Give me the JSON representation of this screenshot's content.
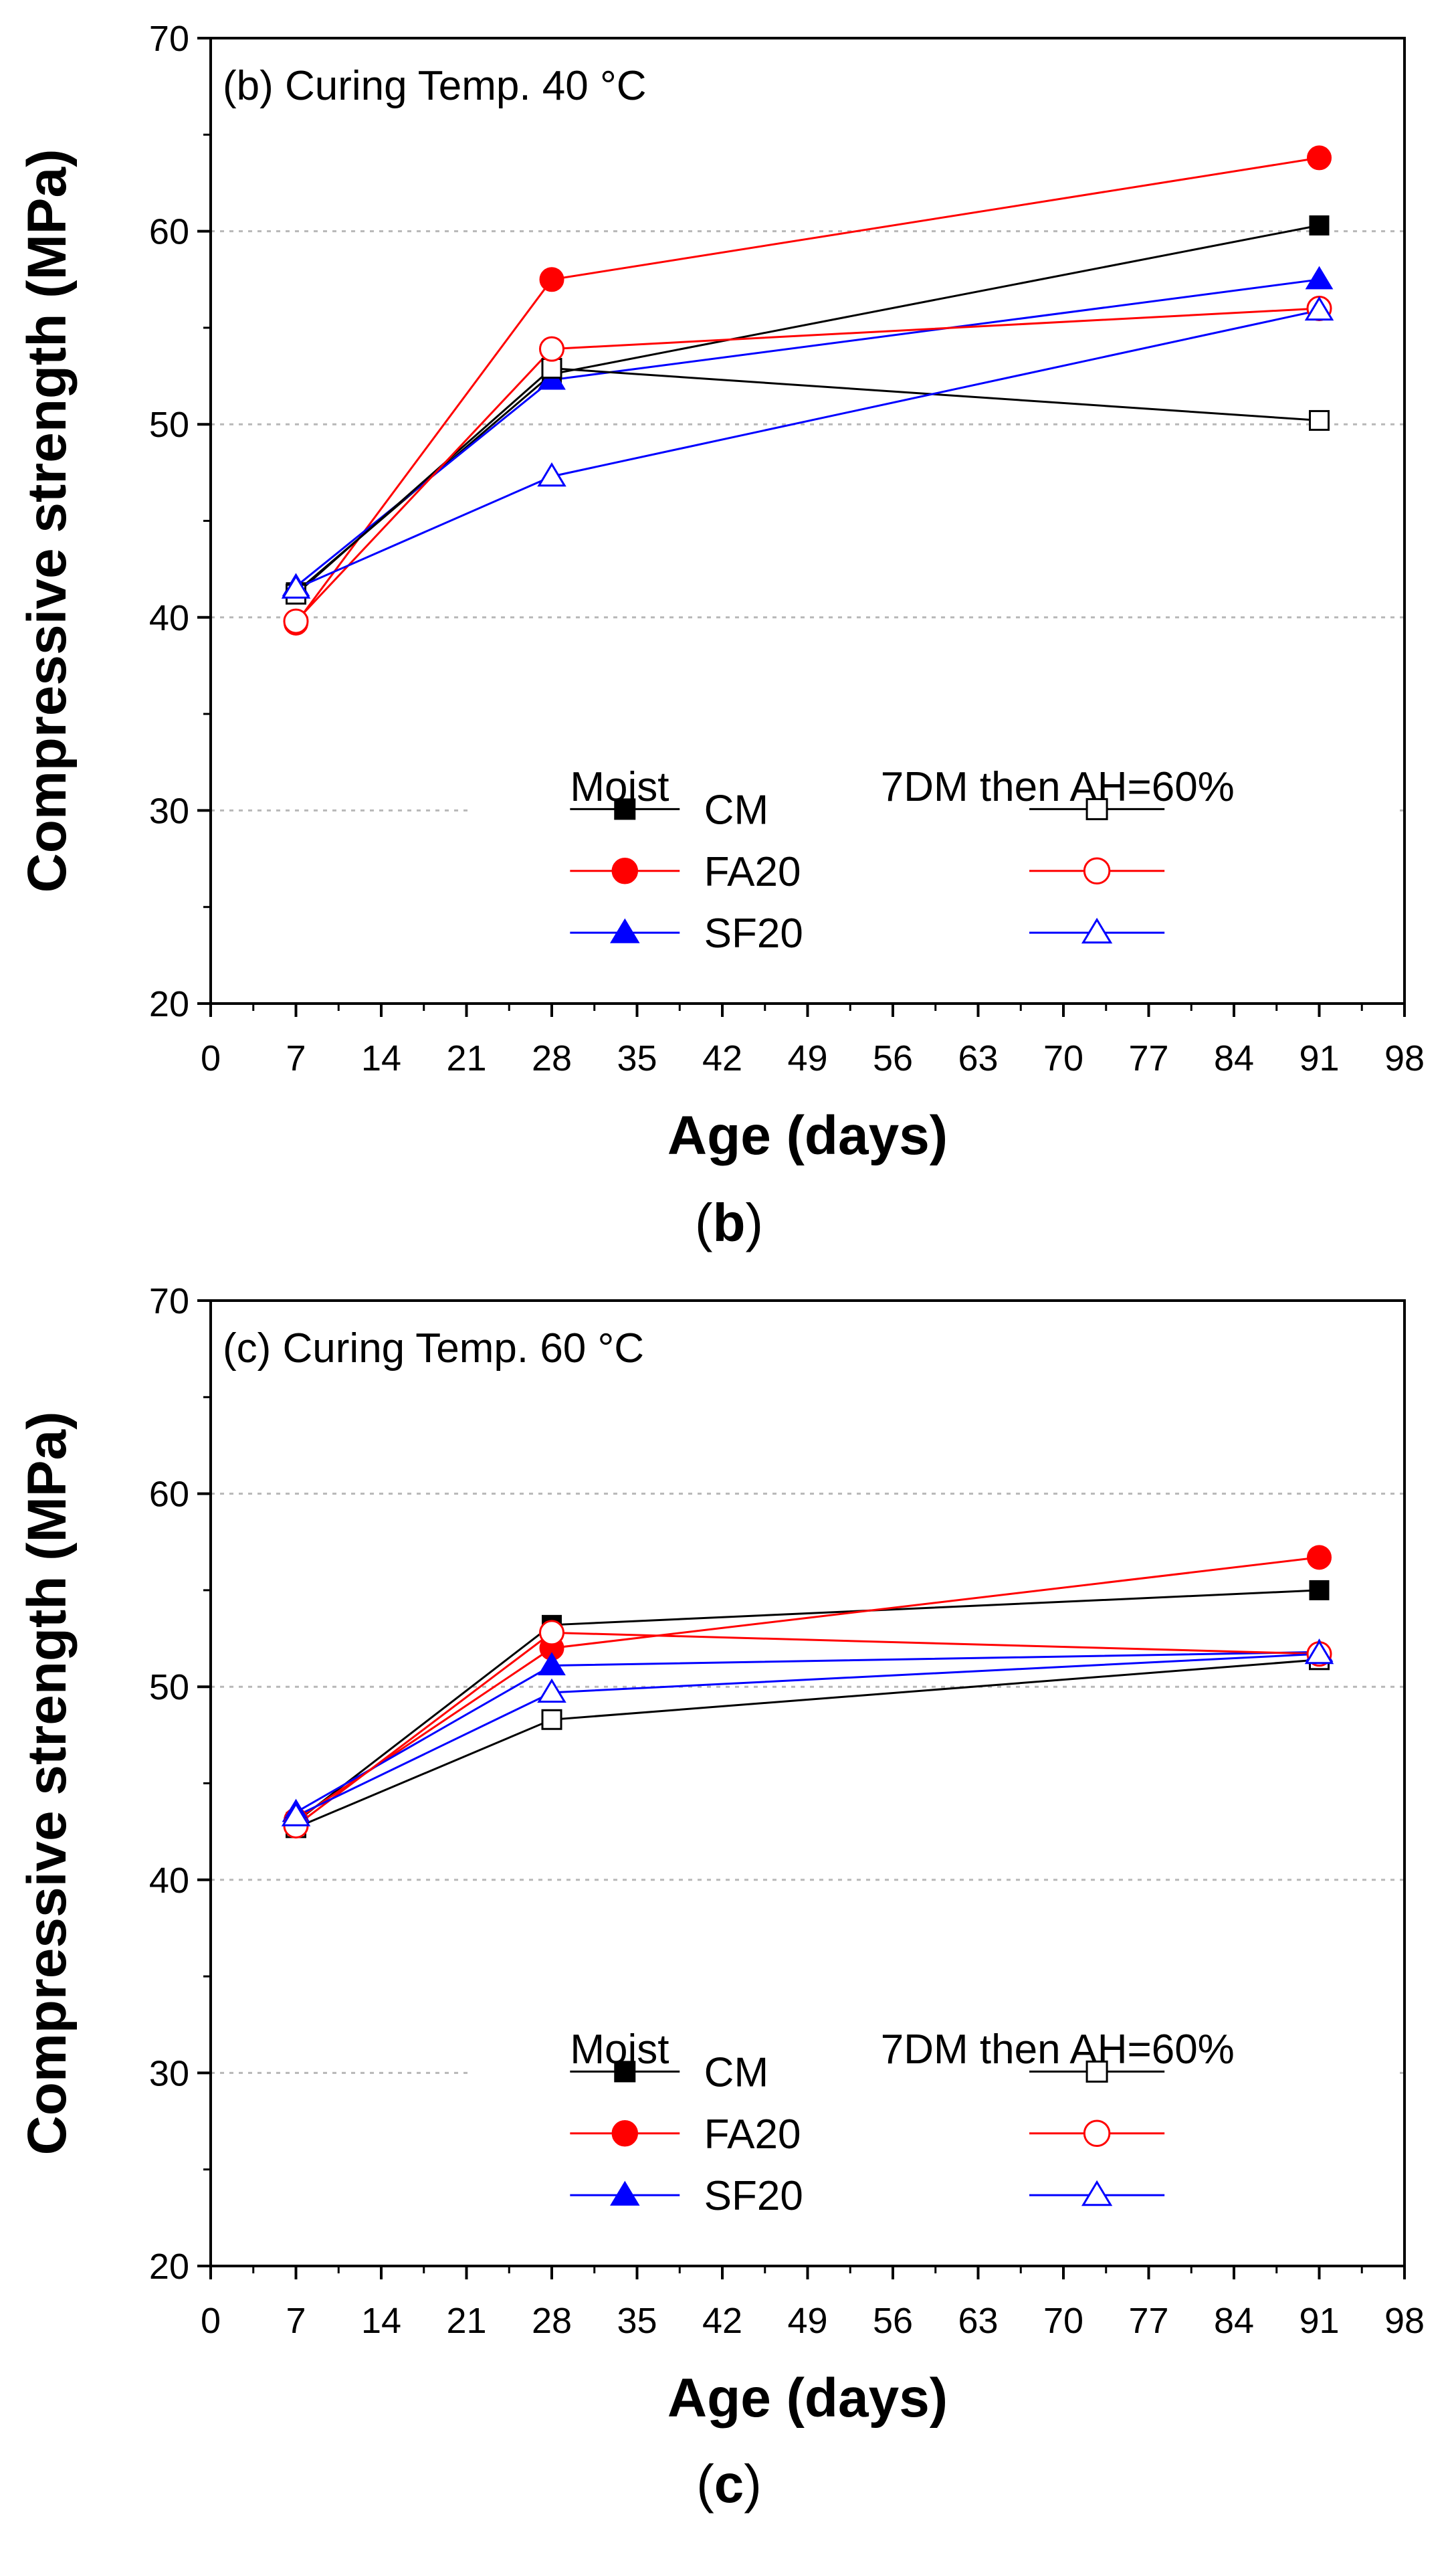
{
  "chart_data": [
    {
      "type": "line",
      "panel_caption": "(b)",
      "title": "(b) Curing Temp. 40 °C",
      "xlabel": "Age (days)",
      "ylabel": "Compressive strength (MPa)",
      "xlim": [
        0,
        98
      ],
      "ylim": [
        20,
        70
      ],
      "xticks": [
        0,
        7,
        14,
        21,
        28,
        35,
        42,
        49,
        56,
        63,
        70,
        77,
        84,
        91,
        98
      ],
      "yticks": [
        20,
        30,
        40,
        50,
        60,
        70
      ],
      "grid": "horizontal dotted at 30, 40, 50, 60",
      "x": [
        7,
        28,
        91
      ],
      "legend": {
        "position": "bottom-right",
        "header_left": "Moist",
        "header_right": "7DM then AH=60%",
        "rows": [
          {
            "label": "CM",
            "color": "#000000",
            "marker": "square"
          },
          {
            "label": "FA20",
            "color": "#ff0000",
            "marker": "circle"
          },
          {
            "label": "SF20",
            "color": "#0000ff",
            "marker": "triangle"
          }
        ]
      },
      "series": [
        {
          "name": "CM Moist",
          "color": "#000000",
          "marker": "square",
          "filled": true,
          "values": [
            41.3,
            52.6,
            60.3
          ]
        },
        {
          "name": "FA20 Moist",
          "color": "#ff0000",
          "marker": "circle",
          "filled": true,
          "values": [
            39.7,
            57.5,
            63.8
          ]
        },
        {
          "name": "SF20 Moist",
          "color": "#0000ff",
          "marker": "triangle",
          "filled": true,
          "values": [
            41.6,
            52.3,
            57.5
          ]
        },
        {
          "name": "CM 7DM then AH=60%",
          "color": "#000000",
          "marker": "square",
          "filled": false,
          "values": [
            41.2,
            52.9,
            50.2
          ]
        },
        {
          "name": "FA20 7DM then AH=60%",
          "color": "#ff0000",
          "marker": "circle",
          "filled": false,
          "values": [
            39.8,
            53.9,
            56.0
          ]
        },
        {
          "name": "SF20 7DM then AH=60%",
          "color": "#0000ff",
          "marker": "triangle",
          "filled": false,
          "values": [
            41.5,
            47.3,
            55.9
          ]
        }
      ]
    },
    {
      "type": "line",
      "panel_caption": "(c)",
      "title": "(c) Curing Temp. 60 °C",
      "xlabel": "Age (days)",
      "ylabel": "Compressive strength (MPa)",
      "xlim": [
        0,
        98
      ],
      "ylim": [
        20,
        70
      ],
      "xticks": [
        0,
        7,
        14,
        21,
        28,
        35,
        42,
        49,
        56,
        63,
        70,
        77,
        84,
        91,
        98
      ],
      "yticks": [
        20,
        30,
        40,
        50,
        60,
        70
      ],
      "grid": "horizontal dotted at 30, 40, 50, 60",
      "x": [
        7,
        28,
        91
      ],
      "legend": {
        "position": "bottom-right",
        "header_left": "Moist",
        "header_right": "7DM then AH=60%",
        "rows": [
          {
            "label": "CM",
            "color": "#000000",
            "marker": "square"
          },
          {
            "label": "FA20",
            "color": "#ff0000",
            "marker": "circle"
          },
          {
            "label": "SF20",
            "color": "#0000ff",
            "marker": "triangle"
          }
        ]
      },
      "series": [
        {
          "name": "CM Moist",
          "color": "#000000",
          "marker": "square",
          "filled": true,
          "values": [
            43.0,
            53.2,
            55.0
          ]
        },
        {
          "name": "FA20 Moist",
          "color": "#ff0000",
          "marker": "circle",
          "filled": true,
          "values": [
            43.1,
            52.0,
            56.7
          ]
        },
        {
          "name": "SF20 Moist",
          "color": "#0000ff",
          "marker": "triangle",
          "filled": true,
          "values": [
            43.5,
            51.1,
            51.8
          ]
        },
        {
          "name": "CM 7DM then AH=60%",
          "color": "#000000",
          "marker": "square",
          "filled": false,
          "values": [
            42.7,
            48.3,
            51.4
          ]
        },
        {
          "name": "FA20 7DM then AH=60%",
          "color": "#ff0000",
          "marker": "circle",
          "filled": false,
          "values": [
            42.8,
            52.8,
            51.7
          ]
        },
        {
          "name": "SF20 7DM then AH=60%",
          "color": "#0000ff",
          "marker": "triangle",
          "filled": false,
          "values": [
            43.3,
            49.7,
            51.7
          ]
        }
      ]
    }
  ]
}
